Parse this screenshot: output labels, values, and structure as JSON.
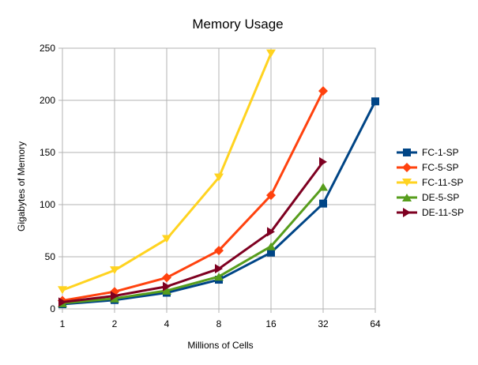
{
  "chart_data": {
    "type": "line",
    "title": "Memory Usage",
    "xlabel": "Millions of Cells",
    "ylabel": "Gigabytes of Memory",
    "x": [
      "1",
      "2",
      "4",
      "8",
      "16",
      "32",
      "64"
    ],
    "ylim": [
      0,
      250
    ],
    "yticks": [
      "0",
      "50",
      "100",
      "150",
      "200",
      "250"
    ],
    "grid": true,
    "legend_position": "right",
    "series": [
      {
        "name": "FC-1-SP",
        "color": "#004586",
        "marker": "square",
        "values": [
          4.5,
          8.5,
          15.5,
          28,
          54,
          101,
          199
        ]
      },
      {
        "name": "FC-5-SP",
        "color": "#ff420e",
        "marker": "diamond",
        "values": [
          8,
          16.5,
          30,
          56,
          109,
          209,
          null
        ]
      },
      {
        "name": "FC-11-SP",
        "color": "#ffd320",
        "marker": "triangle-down",
        "values": [
          18,
          37,
          67,
          126,
          245,
          null,
          null
        ]
      },
      {
        "name": "DE-5-SP",
        "color": "#579d1c",
        "marker": "triangle-up",
        "values": [
          5.5,
          10,
          17.5,
          31,
          60,
          117,
          null
        ]
      },
      {
        "name": "DE-11-SP",
        "color": "#7e0021",
        "marker": "triangle-right",
        "values": [
          6.5,
          12.5,
          21.5,
          38.5,
          74,
          141,
          null
        ]
      }
    ]
  }
}
